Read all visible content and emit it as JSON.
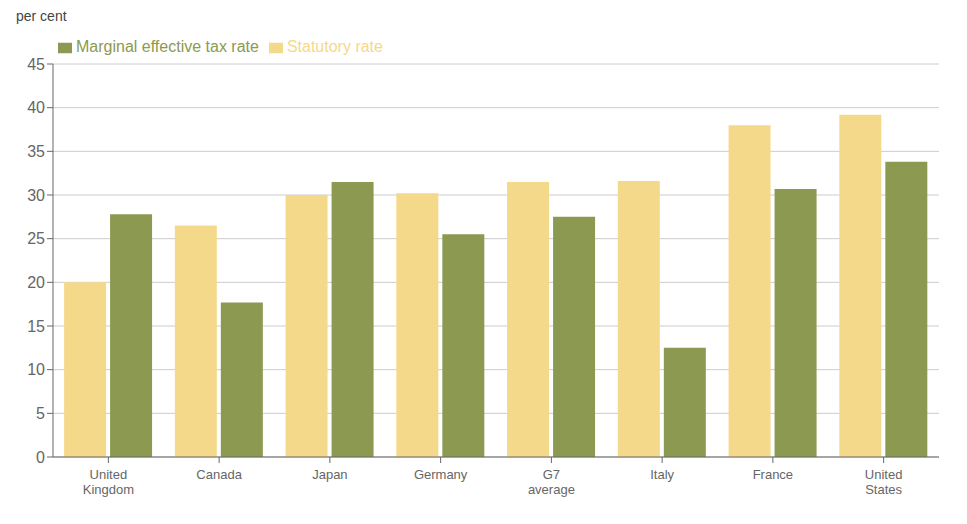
{
  "chart_data": {
    "type": "bar",
    "ylabel": "per cent",
    "categories": [
      "United\nKingdom",
      "Canada",
      "Japan",
      "Germany",
      "G7\naverage",
      "Italy",
      "France",
      "United\nStates"
    ],
    "series": [
      {
        "name": "Statutory rate",
        "color": "#F5D98B",
        "values": [
          20.0,
          26.5,
          30.0,
          30.2,
          31.5,
          31.6,
          38.0,
          39.2
        ]
      },
      {
        "name": "Marginal effective tax rate",
        "color": "#8B9A50",
        "values": [
          27.8,
          17.7,
          31.5,
          25.5,
          27.5,
          12.5,
          30.7,
          33.8
        ]
      }
    ],
    "ylim": [
      0,
      45
    ],
    "yticks": [
      0,
      5,
      10,
      15,
      20,
      25,
      30,
      35,
      40,
      45
    ],
    "grid": true,
    "legend": "upper left"
  }
}
